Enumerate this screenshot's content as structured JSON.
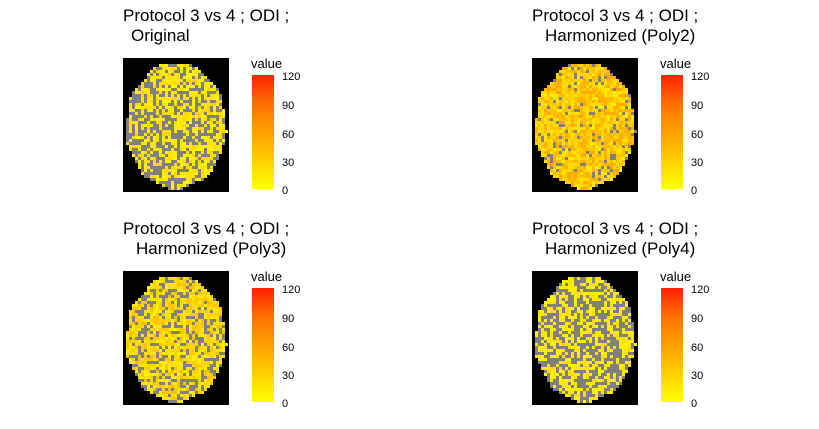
{
  "chart_data": [
    {
      "type": "heatmap",
      "title_line1": "Protocol 3 vs 4 ; ODI ;",
      "title_line2": "Original",
      "legend_title": "value",
      "legend_ticks": [
        "120",
        "90",
        "60",
        "30",
        "0"
      ],
      "value_range": [
        0,
        120
      ],
      "fill_colors": [
        "#ffff00",
        "#ff0000"
      ],
      "background_color": "#000000",
      "na_color": "#808080",
      "na_fraction": 0.42,
      "mean_value": 12
    },
    {
      "type": "heatmap",
      "title_line1": "Protocol 3 vs 4 ; ODI ;",
      "title_line2": "Harmonized (Poly2)",
      "legend_title": "value",
      "legend_ticks": [
        "120",
        "90",
        "60",
        "30",
        "0"
      ],
      "value_range": [
        0,
        120
      ],
      "fill_colors": [
        "#ffff00",
        "#ff0000"
      ],
      "background_color": "#000000",
      "na_color": "#808080",
      "na_fraction": 0.12,
      "mean_value": 25
    },
    {
      "type": "heatmap",
      "title_line1": "Protocol 3 vs 4 ; ODI ;",
      "title_line2": "Harmonized (Poly3)",
      "legend_title": "value",
      "legend_ticks": [
        "120",
        "90",
        "60",
        "30",
        "0"
      ],
      "value_range": [
        0,
        120
      ],
      "fill_colors": [
        "#ffff00",
        "#ff0000"
      ],
      "background_color": "#000000",
      "na_color": "#808080",
      "na_fraction": 0.3,
      "mean_value": 18
    },
    {
      "type": "heatmap",
      "title_line1": "Protocol 3 vs 4 ; ODI ;",
      "title_line2": "Harmonized (Poly4)",
      "legend_title": "value",
      "legend_ticks": [
        "120",
        "90",
        "60",
        "30",
        "0"
      ],
      "value_range": [
        0,
        120
      ],
      "fill_colors": [
        "#ffff00",
        "#ff0000"
      ],
      "background_color": "#000000",
      "na_color": "#808080",
      "na_fraction": 0.5,
      "mean_value": 10
    }
  ]
}
